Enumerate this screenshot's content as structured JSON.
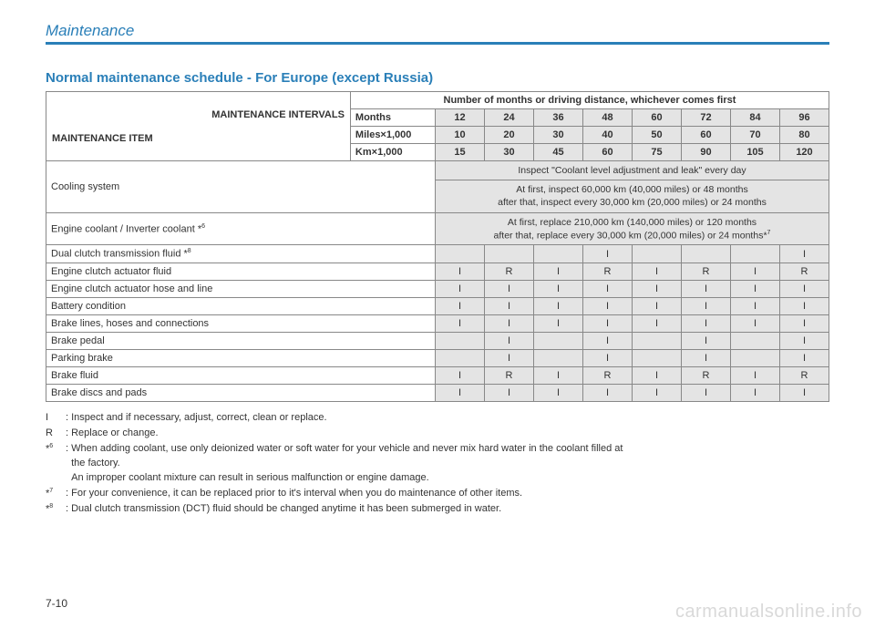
{
  "header": {
    "title": "Maintenance"
  },
  "section_title": "Normal maintenance schedule - For Europe (except Russia)",
  "corner": {
    "intervals": "MAINTENANCE INTERVALS",
    "item": "MAINTENANCE ITEM"
  },
  "col_header": "Number of months or driving distance, whichever comes first",
  "units": {
    "months": {
      "label": "Months",
      "values": [
        "12",
        "24",
        "36",
        "48",
        "60",
        "72",
        "84",
        "96"
      ]
    },
    "miles": {
      "label": "Miles×1,000",
      "values": [
        "10",
        "20",
        "30",
        "40",
        "50",
        "60",
        "70",
        "80"
      ]
    },
    "km": {
      "label": "Km×1,000",
      "values": [
        "15",
        "30",
        "45",
        "60",
        "75",
        "90",
        "105",
        "120"
      ]
    }
  },
  "cooling": {
    "label": "Cooling system",
    "note1": "Inspect \"Coolant level adjustment and leak\" every day",
    "note2a": "At first, inspect 60,000 km (40,000 miles) or 48 months",
    "note2b": "after that, inspect every 30,000 km (20,000 miles) or 24 months"
  },
  "engine_coolant": {
    "label": "Engine coolant / Inverter coolant *",
    "sup": "6",
    "note_a": "At first, replace 210,000 km (140,000 miles) or 120 months",
    "note_b": "after that, replace every 30,000 km (20,000 miles) or 24 months*",
    "note_sup": "7"
  },
  "rows": [
    {
      "label": "Dual clutch transmission fluid *",
      "sup": "8",
      "cells": [
        "",
        "",
        "",
        "I",
        "",
        "",
        "",
        "I"
      ]
    },
    {
      "label": "Engine clutch actuator fluid",
      "cells": [
        "I",
        "R",
        "I",
        "R",
        "I",
        "R",
        "I",
        "R"
      ]
    },
    {
      "label": "Engine clutch actuator hose and line",
      "cells": [
        "I",
        "I",
        "I",
        "I",
        "I",
        "I",
        "I",
        "I"
      ]
    },
    {
      "label": "Battery condition",
      "cells": [
        "I",
        "I",
        "I",
        "I",
        "I",
        "I",
        "I",
        "I"
      ]
    },
    {
      "label": "Brake lines, hoses and connections",
      "cells": [
        "I",
        "I",
        "I",
        "I",
        "I",
        "I",
        "I",
        "I"
      ]
    },
    {
      "label": "Brake pedal",
      "cells": [
        "",
        "I",
        "",
        "I",
        "",
        "I",
        "",
        "I"
      ]
    },
    {
      "label": "Parking brake",
      "cells": [
        "",
        "I",
        "",
        "I",
        "",
        "I",
        "",
        "I"
      ]
    },
    {
      "label": "Brake fluid",
      "cells": [
        "I",
        "R",
        "I",
        "R",
        "I",
        "R",
        "I",
        "R"
      ]
    },
    {
      "label": "Brake discs and pads",
      "cells": [
        "I",
        "I",
        "I",
        "I",
        "I",
        "I",
        "I",
        "I"
      ]
    }
  ],
  "legend": {
    "i": {
      "key": "I",
      "text": ": Inspect and if necessary, adjust, correct, clean or replace."
    },
    "r": {
      "key": "R",
      "text": ": Replace or change."
    },
    "n6": {
      "key": "*6",
      "text_a": ": When adding coolant, use only deionized water or soft water for your vehicle and never mix hard water in the coolant filled at",
      "text_b": "the factory.",
      "text_c": "An improper coolant mixture can result in serious malfunction or engine damage."
    },
    "n7": {
      "key": "*7",
      "text": ": For your convenience, it can be replaced prior to it's interval when you do maintenance of other items."
    },
    "n8": {
      "key": "*8",
      "text": ": Dual clutch transmission (DCT) fluid should be changed anytime it has been submerged in water."
    }
  },
  "page_num": "7-10",
  "watermark": "carmanualsonline.info"
}
